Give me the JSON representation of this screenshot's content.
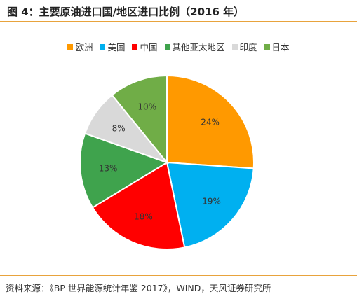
{
  "header": {
    "title": "图 4：主要原油进口国/地区进口比例（2016 年）"
  },
  "chart_data": {
    "type": "pie",
    "title": "",
    "categories": [
      "欧洲",
      "美国",
      "中国",
      "其他亚太地区",
      "印度",
      "日本"
    ],
    "values": [
      24,
      19,
      18,
      13,
      8,
      10
    ],
    "value_labels": [
      "24%",
      "19%",
      "18%",
      "13%",
      "8%",
      "10%"
    ],
    "colors": [
      "#FF9900",
      "#00B0F0",
      "#FF0000",
      "#3FA34D",
      "#D9D9D9",
      "#70AD47"
    ],
    "start_angle": "12 o'clock",
    "direction": "clockwise",
    "legend_position": "top"
  },
  "footer": {
    "source": "资料来源：《BP 世界能源统计年鉴 2017》，WIND，天风证券研究所"
  }
}
